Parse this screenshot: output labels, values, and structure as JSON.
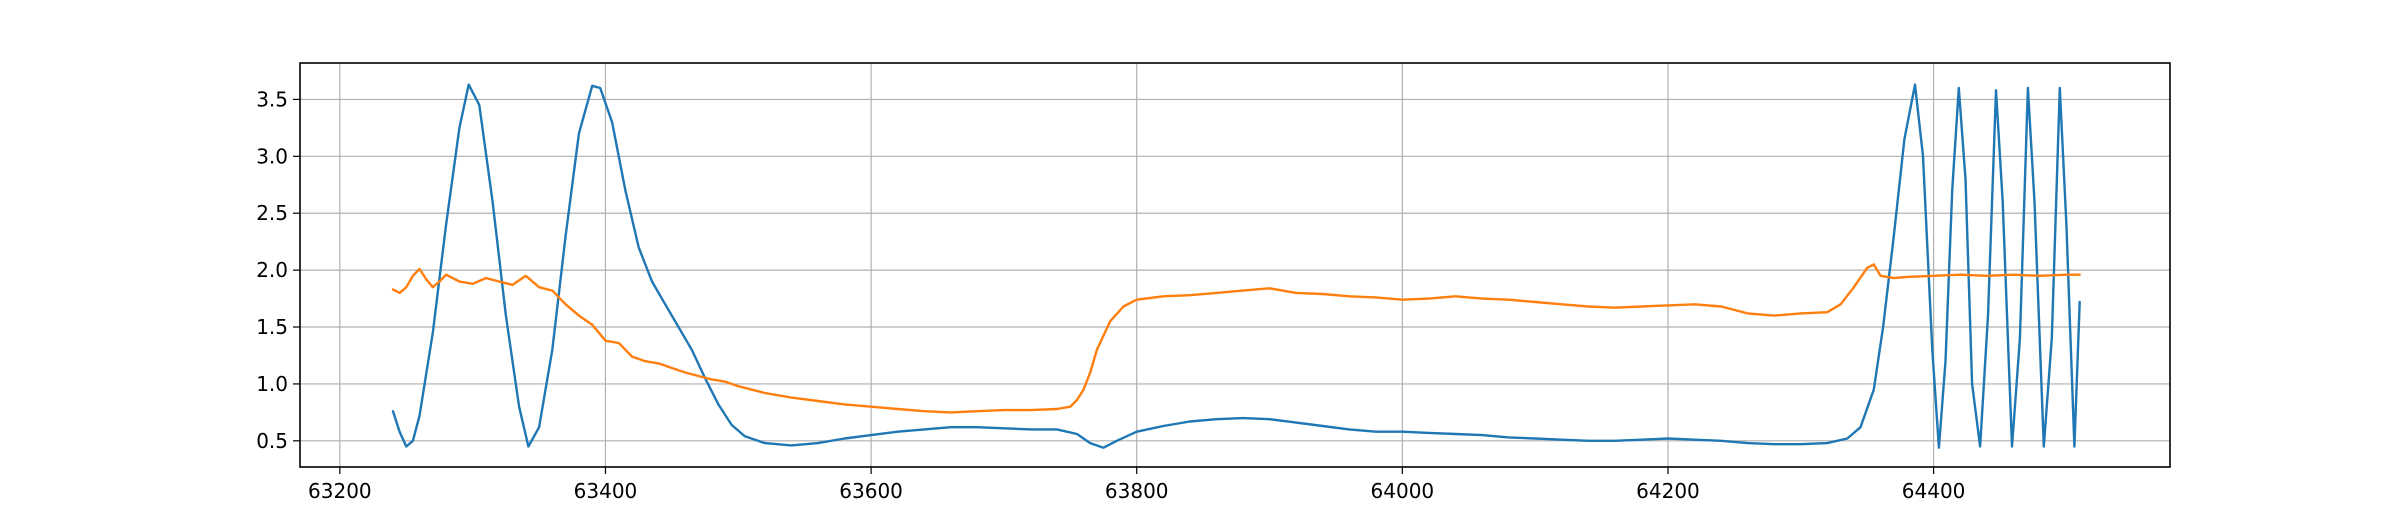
{
  "chart_data": {
    "type": "line",
    "title": "",
    "xlabel": "",
    "ylabel": "",
    "xlim": [
      63170,
      64578
    ],
    "ylim": [
      0.27,
      3.82
    ],
    "grid": true,
    "legend": "none",
    "x_ticks": [
      63200,
      63400,
      63600,
      63800,
      64000,
      64200,
      64400
    ],
    "x_tick_labels": [
      "63200",
      "63400",
      "63600",
      "63800",
      "64000",
      "64200",
      "64400"
    ],
    "y_ticks": [
      0.5,
      1.0,
      1.5,
      2.0,
      2.5,
      3.0,
      3.5
    ],
    "y_tick_labels": [
      "0.5",
      "1.0",
      "1.5",
      "2.0",
      "2.5",
      "3.0",
      "3.5"
    ],
    "series": [
      {
        "color": "#1f77b4",
        "x": [
          63240,
          63245,
          63250,
          63255,
          63260,
          63270,
          63280,
          63290,
          63297,
          63305,
          63315,
          63325,
          63335,
          63342,
          63350,
          63360,
          63370,
          63380,
          63390,
          63396,
          63405,
          63415,
          63425,
          63435,
          63445,
          63455,
          63465,
          63475,
          63485,
          63495,
          63505,
          63520,
          63540,
          63560,
          63580,
          63600,
          63620,
          63640,
          63660,
          63680,
          63700,
          63720,
          63740,
          63755,
          63765,
          63775,
          63785,
          63800,
          63820,
          63840,
          63860,
          63880,
          63900,
          63920,
          63940,
          63960,
          63980,
          64000,
          64020,
          64040,
          64060,
          64080,
          64100,
          64120,
          64140,
          64160,
          64180,
          64200,
          64220,
          64240,
          64260,
          64280,
          64300,
          64320,
          64335,
          64345,
          64355,
          64362,
          64370,
          64378,
          64386,
          64392,
          64399,
          64404,
          64409,
          64414,
          64419,
          64424,
          64429,
          64435,
          64441,
          64447,
          64452,
          64459,
          64465,
          64471,
          64476,
          64483,
          64489,
          64495,
          64500,
          64506,
          64510
        ],
        "y": [
          0.76,
          0.58,
          0.45,
          0.5,
          0.72,
          1.45,
          2.4,
          3.25,
          3.63,
          3.45,
          2.6,
          1.6,
          0.8,
          0.45,
          0.62,
          1.3,
          2.3,
          3.2,
          3.62,
          3.6,
          3.3,
          2.7,
          2.2,
          1.9,
          1.7,
          1.5,
          1.3,
          1.05,
          0.82,
          0.64,
          0.54,
          0.48,
          0.46,
          0.48,
          0.52,
          0.55,
          0.58,
          0.6,
          0.62,
          0.62,
          0.61,
          0.6,
          0.6,
          0.56,
          0.48,
          0.44,
          0.5,
          0.58,
          0.63,
          0.67,
          0.69,
          0.7,
          0.69,
          0.66,
          0.63,
          0.6,
          0.58,
          0.58,
          0.57,
          0.56,
          0.55,
          0.53,
          0.52,
          0.51,
          0.5,
          0.5,
          0.51,
          0.52,
          0.51,
          0.5,
          0.48,
          0.47,
          0.47,
          0.48,
          0.52,
          0.62,
          0.95,
          1.5,
          2.3,
          3.15,
          3.63,
          3.0,
          1.3,
          0.44,
          1.2,
          2.7,
          3.6,
          2.8,
          1.0,
          0.45,
          1.6,
          3.58,
          2.6,
          0.45,
          1.4,
          3.6,
          2.6,
          0.45,
          1.4,
          3.6,
          2.4,
          0.45,
          1.72
        ]
      },
      {
        "color": "#ff7f0e",
        "x": [
          63240,
          63245,
          63250,
          63255,
          63260,
          63265,
          63270,
          63275,
          63280,
          63290,
          63300,
          63310,
          63320,
          63330,
          63340,
          63350,
          63360,
          63370,
          63380,
          63390,
          63400,
          63410,
          63420,
          63430,
          63440,
          63450,
          63460,
          63470,
          63480,
          63490,
          63500,
          63520,
          63540,
          63560,
          63580,
          63600,
          63620,
          63640,
          63660,
          63680,
          63700,
          63720,
          63740,
          63750,
          63755,
          63760,
          63765,
          63770,
          63780,
          63790,
          63800,
          63820,
          63840,
          63860,
          63880,
          63900,
          63920,
          63940,
          63960,
          63980,
          64000,
          64020,
          64040,
          64060,
          64080,
          64100,
          64120,
          64140,
          64160,
          64180,
          64200,
          64220,
          64240,
          64260,
          64280,
          64300,
          64320,
          64330,
          64340,
          64350,
          64355,
          64360,
          64370,
          64380,
          64400,
          64420,
          64440,
          64460,
          64480,
          64500,
          64510
        ],
        "y": [
          1.83,
          1.8,
          1.85,
          1.95,
          2.01,
          1.92,
          1.85,
          1.9,
          1.96,
          1.9,
          1.88,
          1.93,
          1.9,
          1.87,
          1.95,
          1.85,
          1.82,
          1.7,
          1.6,
          1.52,
          1.38,
          1.36,
          1.24,
          1.2,
          1.18,
          1.14,
          1.1,
          1.07,
          1.04,
          1.02,
          0.98,
          0.92,
          0.88,
          0.85,
          0.82,
          0.8,
          0.78,
          0.76,
          0.75,
          0.76,
          0.77,
          0.77,
          0.78,
          0.8,
          0.86,
          0.95,
          1.1,
          1.3,
          1.55,
          1.68,
          1.74,
          1.77,
          1.78,
          1.8,
          1.82,
          1.84,
          1.8,
          1.79,
          1.77,
          1.76,
          1.74,
          1.75,
          1.77,
          1.75,
          1.74,
          1.72,
          1.7,
          1.68,
          1.67,
          1.68,
          1.69,
          1.7,
          1.68,
          1.62,
          1.6,
          1.62,
          1.63,
          1.7,
          1.85,
          2.02,
          2.05,
          1.95,
          1.93,
          1.94,
          1.95,
          1.96,
          1.95,
          1.96,
          1.95,
          1.96,
          1.96
        ]
      }
    ]
  }
}
